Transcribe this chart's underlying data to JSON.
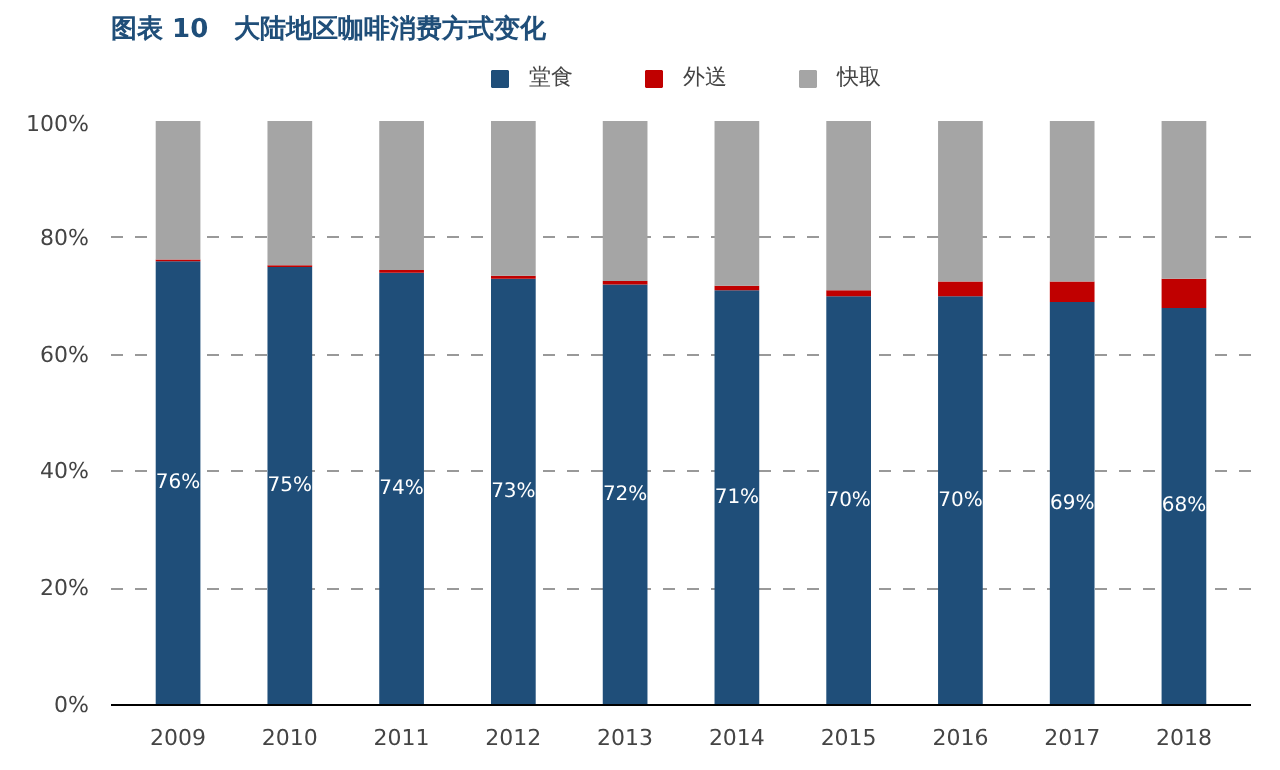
{
  "chart_data": {
    "type": "bar",
    "stacked": true,
    "title": "图表 10　大陆地区咖啡消费方式变化",
    "categories": [
      "2009",
      "2010",
      "2011",
      "2012",
      "2013",
      "2014",
      "2015",
      "2016",
      "2017",
      "2018"
    ],
    "series": [
      {
        "name": "堂食",
        "color": "#1f4e79",
        "values": [
          76,
          75,
          74,
          73,
          72,
          71,
          70,
          70,
          69,
          68
        ],
        "value_labels": [
          "76%",
          "75%",
          "74%",
          "73%",
          "72%",
          "71%",
          "70%",
          "70%",
          "69%",
          "68%"
        ]
      },
      {
        "name": "外送",
        "color": "#c00000",
        "values": [
          0.3,
          0.3,
          0.5,
          0.5,
          0.6,
          0.8,
          1,
          2.5,
          3.5,
          5
        ]
      },
      {
        "name": "快取",
        "color": "#a5a5a5",
        "values": [
          23.7,
          24.7,
          25.5,
          26.5,
          27.4,
          28.2,
          29,
          27.5,
          27.5,
          27
        ]
      }
    ],
    "ylim": [
      0,
      100
    ],
    "yticks": [
      {
        "value": 0,
        "label": "0%"
      },
      {
        "value": 20,
        "label": "20%"
      },
      {
        "value": 40,
        "label": "40%"
      },
      {
        "value": 60,
        "label": "60%"
      },
      {
        "value": 80,
        "label": "80%"
      },
      {
        "value": 100,
        "label": "100%"
      }
    ],
    "grid": "y",
    "legend": "top"
  }
}
